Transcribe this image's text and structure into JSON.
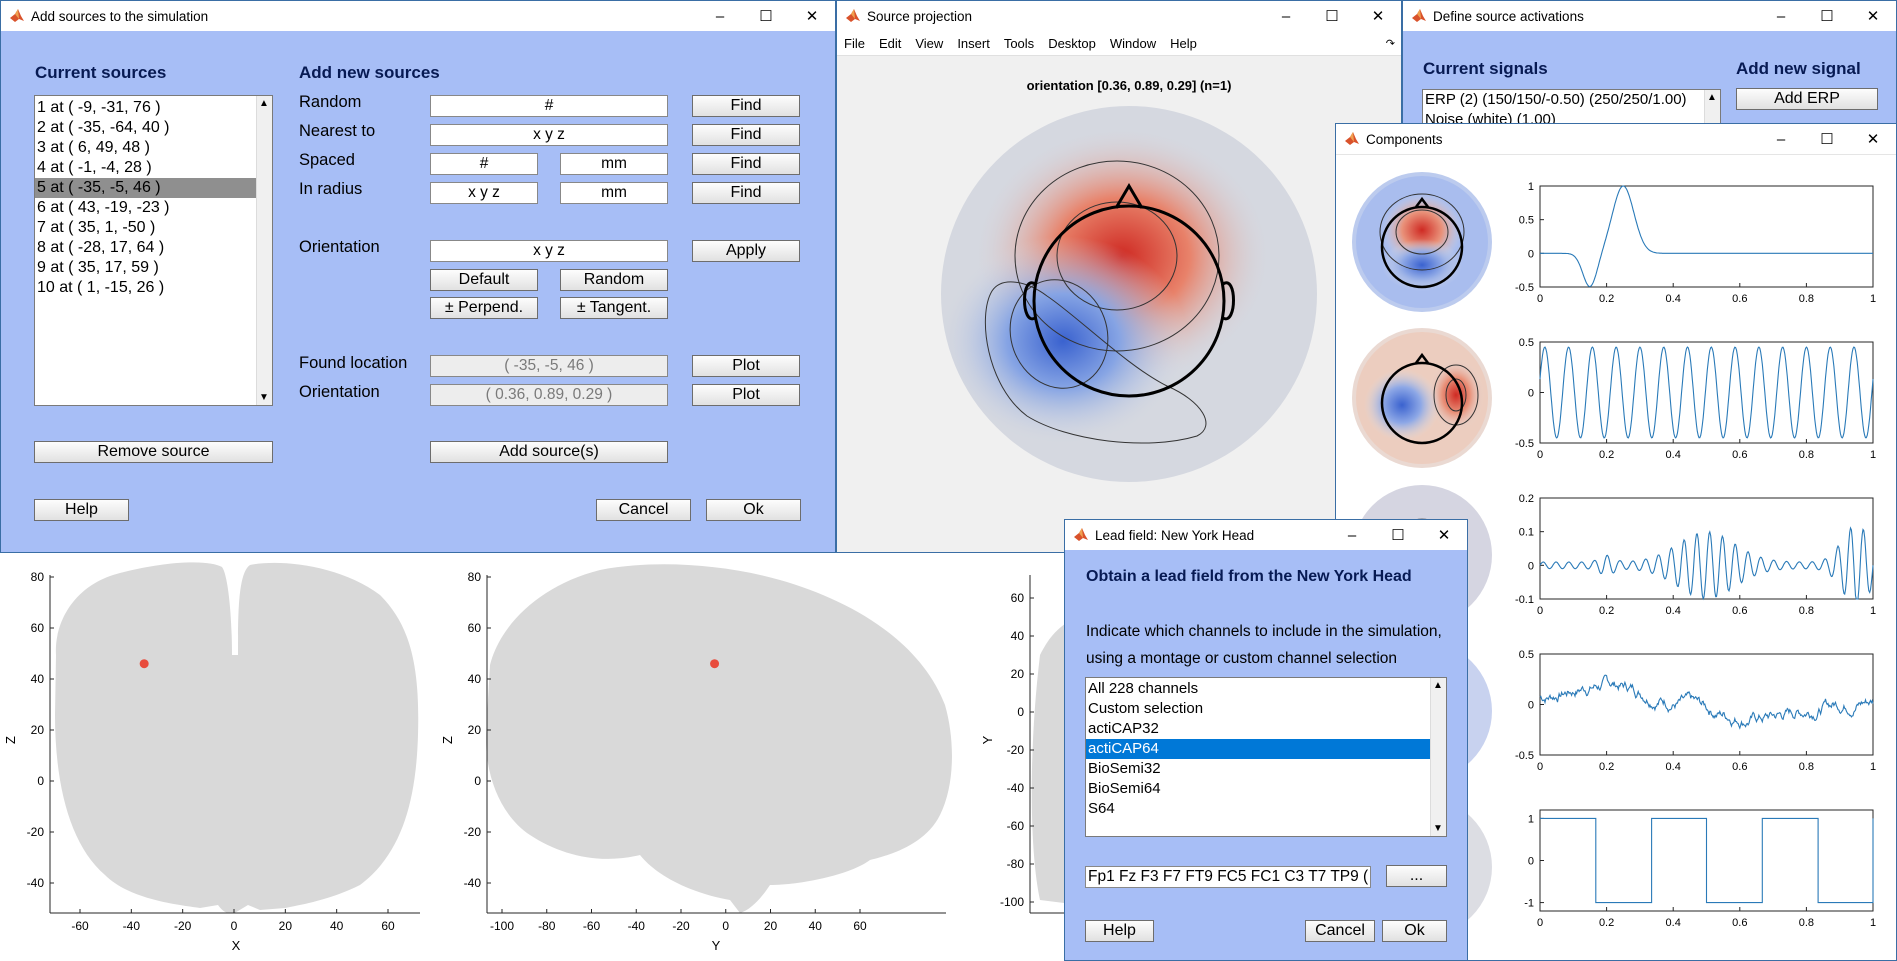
{
  "windows": {
    "add_sources": {
      "title": "Add sources to the simulation",
      "current_sources_header": "Current sources",
      "add_new_header": "Add new sources",
      "sources": [
        "1 at ( -9, -31, 76 )",
        "2 at ( -35, -64, 40 )",
        "3 at ( 6, 49, 48 )",
        "4 at ( -1, -4, 28 )",
        "5 at ( -35, -5, 46 )",
        "6 at ( 43, -19, -23 )",
        "7 at ( 35, 1, -50 )",
        "8 at ( -28, 17, 64 )",
        "9 at ( 35, 17, 59 )",
        "10 at ( 1, -15, 26 )"
      ],
      "selected_index": 4,
      "labels": {
        "random": "Random",
        "nearest": "Nearest to",
        "spaced": "Spaced",
        "radius": "In radius",
        "orientation": "Orientation",
        "found": "Found location",
        "orientation2": "Orientation"
      },
      "fields": {
        "random": "#",
        "nearest": "x y z",
        "spaced_n": "#",
        "spaced_mm": "mm",
        "radius_xyz": "x y z",
        "radius_mm": "mm",
        "orientation": "x y z",
        "found": "( -35, -5, 46 )",
        "orientation_val": "( 0.36, 0.89, 0.29 )"
      },
      "buttons": {
        "find": "Find",
        "apply": "Apply",
        "default": "Default",
        "random": "Random",
        "perpend": "± Perpend.",
        "tangent": "± Tangent.",
        "plot": "Plot",
        "remove": "Remove source",
        "add": "Add source(s)",
        "help": "Help",
        "cancel": "Cancel",
        "ok": "Ok"
      }
    },
    "source_projection": {
      "title": "Source projection",
      "menu": [
        "File",
        "Edit",
        "View",
        "Insert",
        "Tools",
        "Desktop",
        "Window",
        "Help"
      ],
      "plot_title": "orientation [0.36, 0.89, 0.29] (n=1)"
    },
    "define_activations": {
      "title": "Define source activations",
      "current_signals_header": "Current signals",
      "add_new_header": "Add new signal",
      "signals": [
        "ERP (2) (150/150/-0.50) (250/250/1.00)",
        "Noise (white) (1.00)"
      ],
      "add_erp": "Add ERP"
    },
    "components": {
      "title": "Components",
      "signal_plots": [
        {
          "kind": "erp",
          "ylim": [
            -0.5,
            1
          ],
          "yticks": [
            "1",
            "0.5",
            "0",
            "-0.5"
          ]
        },
        {
          "kind": "sine",
          "ylim": [
            -0.5,
            0.5
          ],
          "yticks": [
            "0.5",
            "0",
            "-0.5"
          ]
        },
        {
          "kind": "burst",
          "ylim": [
            -0.1,
            0.2
          ],
          "yticks": [
            "0.2",
            "0.1",
            "0",
            "-0.1"
          ]
        },
        {
          "kind": "noise",
          "ylim": [
            -0.5,
            0.5
          ],
          "yticks": [
            "0.5",
            "0",
            "-0.5"
          ]
        },
        {
          "kind": "square",
          "ylim": [
            -1.2,
            1.2
          ],
          "yticks": [
            "1",
            "0",
            "-1"
          ]
        }
      ],
      "xticks": [
        "0",
        "0.2",
        "0.4",
        "0.6",
        "0.8",
        "1"
      ]
    },
    "lead_field": {
      "title": "Lead field: New York Head",
      "heading": "Obtain a lead field from the New York Head",
      "instruction_line1": "Indicate which channels to include in the simulation,",
      "instruction_line2": "using a montage or custom channel selection",
      "options": [
        "All 228 channels",
        "Custom selection",
        "actiCAP32",
        "actiCAP64",
        "BioSemi32",
        "BioSemi64",
        "S64"
      ],
      "selected_index": 3,
      "channel_field": "Fp1 Fz F3 F7 FT9 FC5 FC1 C3 T7 TP9 (",
      "browse": "...",
      "help": "Help",
      "cancel": "Cancel",
      "ok": "Ok"
    }
  },
  "brain_plots": {
    "coronal": {
      "xlabel": "X",
      "ylabel": "Z",
      "xticks": [
        "-60",
        "-40",
        "-20",
        "0",
        "20",
        "40",
        "60"
      ],
      "yticks": [
        "80",
        "60",
        "40",
        "20",
        "0",
        "-20",
        "-40"
      ],
      "source_point": [
        -35,
        46
      ]
    },
    "sagittal": {
      "xlabel": "Y",
      "ylabel": "Z",
      "xticks": [
        "-100",
        "-80",
        "-60",
        "-40",
        "-20",
        "0",
        "20",
        "40",
        "60"
      ],
      "yticks": [
        "80",
        "60",
        "40",
        "20",
        "0",
        "-20",
        "-40"
      ],
      "source_point": [
        -5,
        46
      ]
    },
    "axial": {
      "ylabel": "Y",
      "yticks": [
        "60",
        "40",
        "20",
        "0",
        "-20",
        "-40",
        "-60",
        "-80",
        "-100"
      ]
    }
  },
  "colors": {
    "window_bg": "#a7bef6",
    "header_text": "#071a53",
    "signal_line": "#2a7ab8",
    "source_dot": "#e84c3d",
    "brain_gray": "#d9d9d9"
  }
}
